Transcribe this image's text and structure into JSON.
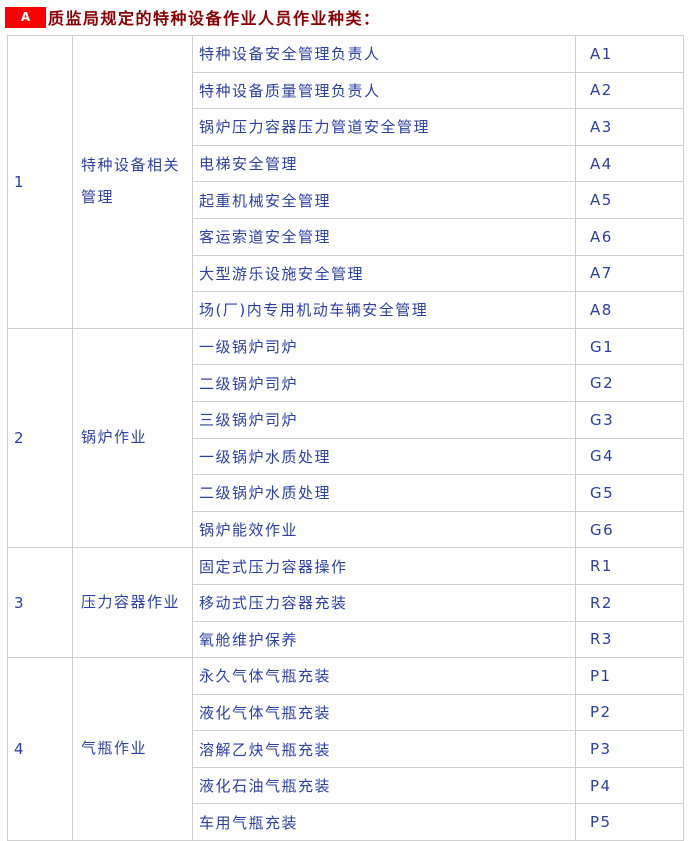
{
  "header": {
    "badge": "A",
    "title": "质监局规定的特种设备作业人员作业种类："
  },
  "colors": {
    "badge_bg": "#ff0000",
    "badge_text": "#ffffff",
    "title_text": "#8b0000",
    "table_text": "#2b3fa5",
    "border": "#cfcfcf"
  },
  "table": {
    "sections": [
      {
        "no": "1",
        "category": "特种设备相关管理",
        "items": [
          {
            "name": "特种设备安全管理负责人",
            "code": "A1"
          },
          {
            "name": "特种设备质量管理负责人",
            "code": "A2"
          },
          {
            "name": "锅炉压力容器压力管道安全管理",
            "code": "A3"
          },
          {
            "name": "电梯安全管理",
            "code": "A4"
          },
          {
            "name": "起重机械安全管理",
            "code": "A5"
          },
          {
            "name": "客运索道安全管理",
            "code": "A6"
          },
          {
            "name": "大型游乐设施安全管理",
            "code": "A7"
          },
          {
            "name": "场(厂)内专用机动车辆安全管理",
            "code": "A8"
          }
        ]
      },
      {
        "no": "2",
        "category": "锅炉作业",
        "items": [
          {
            "name": "一级锅炉司炉",
            "code": "G1"
          },
          {
            "name": "二级锅炉司炉",
            "code": "G2"
          },
          {
            "name": "三级锅炉司炉",
            "code": "G3"
          },
          {
            "name": "一级锅炉水质处理",
            "code": "G4"
          },
          {
            "name": "二级锅炉水质处理",
            "code": "G5"
          },
          {
            "name": "锅炉能效作业",
            "code": "G6"
          }
        ]
      },
      {
        "no": "3",
        "category": "压力容器作业",
        "items": [
          {
            "name": "固定式压力容器操作",
            "code": "R1"
          },
          {
            "name": "移动式压力容器充装",
            "code": "R2"
          },
          {
            "name": "氧舱维护保养",
            "code": "R3"
          }
        ]
      },
      {
        "no": "4",
        "category": "气瓶作业",
        "items": [
          {
            "name": "永久气体气瓶充装",
            "code": "P1"
          },
          {
            "name": "液化气体气瓶充装",
            "code": "P2"
          },
          {
            "name": "溶解乙炔气瓶充装",
            "code": "P3"
          },
          {
            "name": "液化石油气瓶充装",
            "code": "P4"
          },
          {
            "name": "车用气瓶充装",
            "code": "P5"
          }
        ]
      }
    ]
  }
}
